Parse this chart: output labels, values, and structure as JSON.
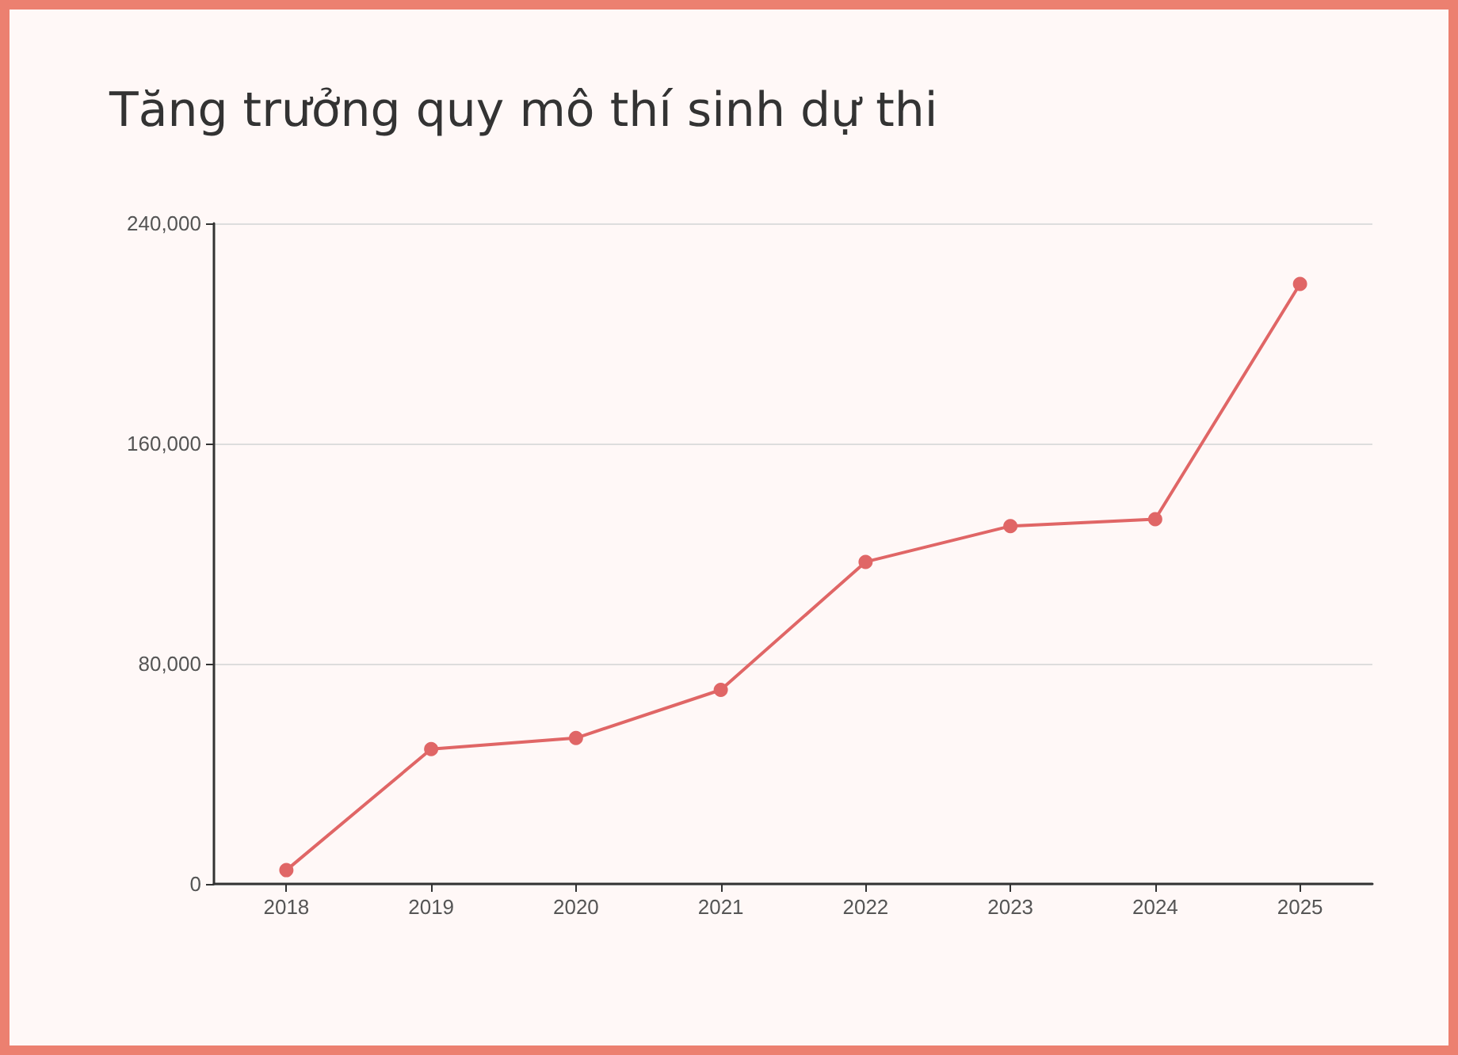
{
  "chart_data": {
    "type": "line",
    "title": "Tăng trưởng quy mô thí sinh dự thi",
    "categories": [
      "2018",
      "2019",
      "2020",
      "2021",
      "2022",
      "2023",
      "2024",
      "2025"
    ],
    "series": [
      {
        "color": "#e06666",
        "values": [
          5000,
          49000,
          53000,
          70500,
          117000,
          130000,
          132500,
          218000
        ]
      }
    ],
    "ylim": [
      0,
      240000
    ],
    "yticks": [
      0,
      {
        "value": 80000,
        "label": "80,000"
      },
      {
        "value": 160000,
        "label": "160,000"
      },
      {
        "value": 240000,
        "label": "240,000"
      }
    ],
    "grid": "y",
    "marker": "circle",
    "line_style": "solid"
  }
}
